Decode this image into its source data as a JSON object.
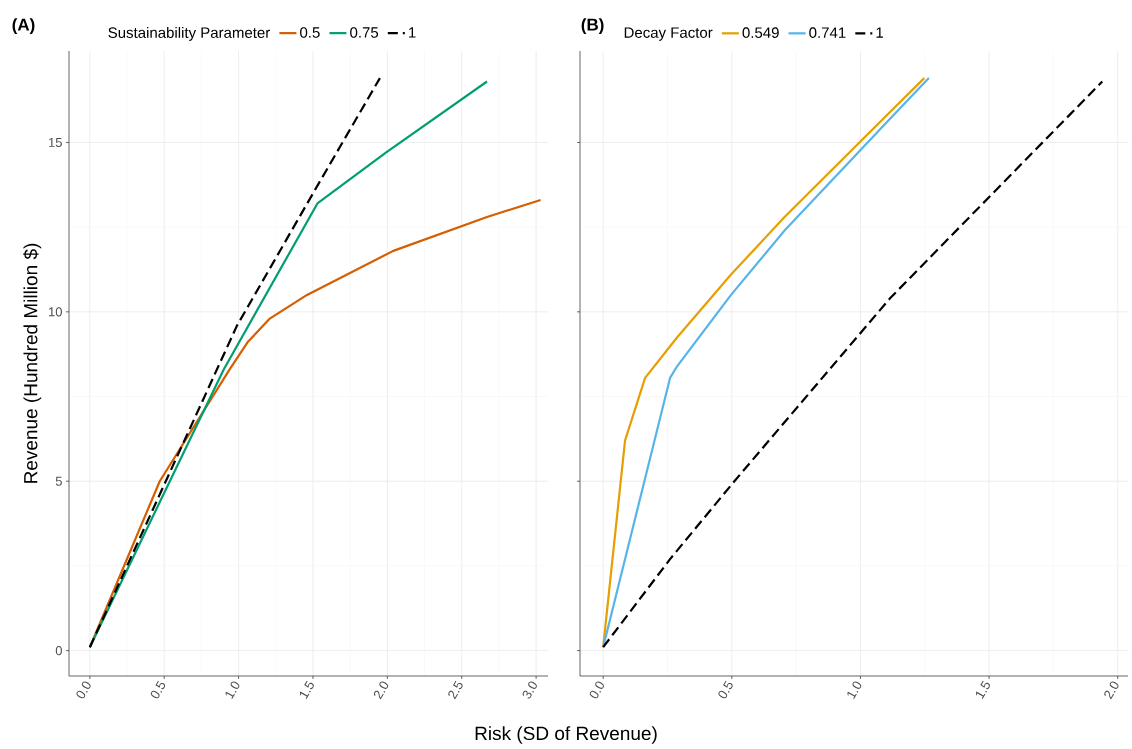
{
  "chart_data": [
    {
      "type": "line",
      "title": "(A)",
      "xlabel": "Risk (SD of Revenue)",
      "ylabel": "Revenue (Hundred Million $)",
      "legend_title": "Sustainability Parameter",
      "legend": "top",
      "grid": true,
      "marker": "none",
      "xlim": [
        -0.14,
        3.08
      ],
      "ylim": [
        -0.75,
        17.7
      ],
      "xticks": [
        {
          "value": 0,
          "label": "0.0"
        },
        {
          "value": 0.5,
          "label": "0.5"
        },
        {
          "value": 1,
          "label": "1.0"
        },
        {
          "value": 1.5,
          "label": "1.5"
        },
        {
          "value": 2,
          "label": "2.0"
        },
        {
          "value": 2.5,
          "label": "2.5"
        },
        {
          "value": 3,
          "label": "3.0"
        }
      ],
      "yticks": [
        0,
        5,
        10,
        15
      ],
      "series": [
        {
          "name": "0.5",
          "color": "#d55e00",
          "line_style": "solid",
          "x": [
            0,
            0.47,
            0.94,
            1.06,
            1.21,
            1.46,
            2.04,
            2.67,
            3.03
          ],
          "values": [
            0.1,
            5.0,
            8.3,
            9.1,
            9.8,
            10.5,
            11.8,
            12.8,
            13.3
          ]
        },
        {
          "name": "0.75",
          "color": "#009e73",
          "line_style": "solid",
          "x": [
            0,
            0.9,
            1.53,
            1.99,
            2.67
          ],
          "values": [
            0.1,
            8.3,
            13.2,
            14.7,
            16.8
          ]
        },
        {
          "name": "1",
          "color": "#000000",
          "line_style": "dashed",
          "x": [
            0,
            0.99,
            1.54,
            1.95
          ],
          "values": [
            0.1,
            9.6,
            13.8,
            16.9
          ]
        }
      ]
    },
    {
      "type": "line",
      "title": "(B)",
      "legend_title": "Decay Factor",
      "legend": "top",
      "grid": true,
      "marker": "none",
      "tick_labels": "x",
      "xlim": [
        -0.09,
        2.04
      ],
      "ylim": [
        -0.75,
        17.7
      ],
      "xticks": [
        {
          "value": 0,
          "label": "0.0"
        },
        {
          "value": 0.5,
          "label": "0.5"
        },
        {
          "value": 1,
          "label": "1.0"
        },
        {
          "value": 1.5,
          "label": "1.5"
        },
        {
          "value": 2,
          "label": "2.0"
        }
      ],
      "yticks": [
        0,
        5,
        10,
        15
      ],
      "series": [
        {
          "name": "0.549",
          "color": "#e69f00",
          "line_style": "solid",
          "x": [
            0,
            0.085,
            0.163,
            0.288,
            0.497,
            0.705,
            1.115,
            1.248
          ],
          "values": [
            0.1,
            6.2,
            8.05,
            9.25,
            11.1,
            12.8,
            15.9,
            16.9
          ]
        },
        {
          "name": "0.741",
          "color": "#56b4e9",
          "line_style": "solid",
          "x": [
            0,
            0.26,
            0.288,
            0.497,
            0.705,
            1.115,
            1.266
          ],
          "values": [
            0.1,
            8.05,
            8.4,
            10.5,
            12.4,
            15.7,
            16.9
          ]
        },
        {
          "name": "1",
          "color": "#000000",
          "line_style": "dashed",
          "x": [
            0,
            0.26,
            0.51,
            1.115,
            1.94
          ],
          "values": [
            0.1,
            2.7,
            5.0,
            10.4,
            16.8
          ]
        }
      ]
    }
  ]
}
